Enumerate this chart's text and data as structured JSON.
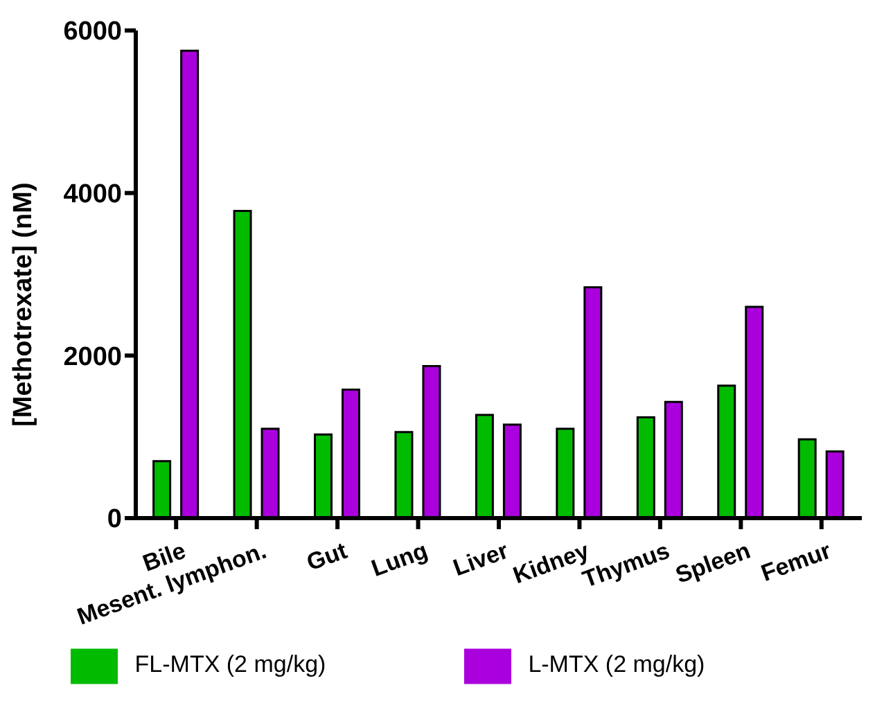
{
  "chart_data": {
    "type": "bar",
    "ylabel": "[Methotrexate] (nM)",
    "categories": [
      "Bile",
      "Mesent. lymphon.",
      "Gut",
      "Lung",
      "Liver",
      "Kidney",
      "Thymus",
      "Spleen",
      "Femur"
    ],
    "series": [
      {
        "name": "FL-MTX (2 mg/kg)",
        "color": "#00bb00",
        "values": [
          700,
          3780,
          1030,
          1060,
          1270,
          1100,
          1240,
          1630,
          970
        ]
      },
      {
        "name": "L-MTX (2 mg/kg)",
        "color": "#aa00dd",
        "values": [
          5750,
          1100,
          1580,
          1870,
          1150,
          2840,
          1430,
          2600,
          820
        ]
      }
    ],
    "ylim": [
      0,
      6000
    ],
    "yticks": [
      0,
      2000,
      4000,
      6000
    ],
    "grid": false,
    "legend": "bottom"
  }
}
